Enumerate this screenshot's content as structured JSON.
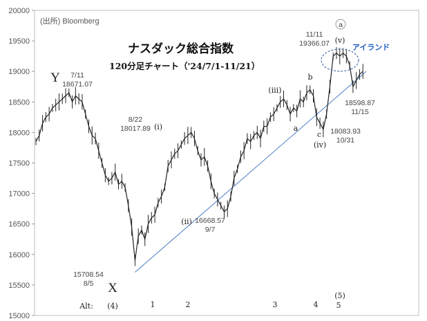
{
  "chart_data": {
    "type": "candlestick",
    "title": "ナスダック総合指数",
    "subtitle": "120分足チャート（'24/7/1-11/21）",
    "source": "(出所) Bloomberg",
    "ylim": [
      15000,
      20000
    ],
    "yticks": [
      15000,
      15500,
      16000,
      16500,
      17000,
      17500,
      18000,
      18500,
      19000,
      19500,
      20000
    ],
    "ytick_labels": [
      "15000",
      "15500",
      "16000",
      "16500",
      "17000",
      "17500",
      "18000",
      "18500",
      "19000",
      "19500",
      "20000"
    ],
    "x_index_range": [
      0,
      100
    ],
    "series": [
      {
        "type": "path",
        "points": [
          [
            0,
            17850
          ],
          [
            1,
            17950
          ],
          [
            2,
            18150
          ],
          [
            3,
            18250
          ],
          [
            4,
            18300
          ],
          [
            5,
            18400
          ],
          [
            6,
            18450
          ],
          [
            7,
            18500
          ],
          [
            8,
            18550
          ],
          [
            9,
            18600
          ],
          [
            10,
            18650
          ],
          [
            11,
            18500
          ],
          [
            12,
            18600
          ],
          [
            13,
            18550
          ],
          [
            14,
            18500
          ],
          [
            15,
            18300
          ],
          [
            16,
            18100
          ],
          [
            17,
            17950
          ],
          [
            18,
            17900
          ],
          [
            19,
            17700
          ],
          [
            20,
            17500
          ],
          [
            21,
            17300
          ],
          [
            22,
            17200
          ],
          [
            23,
            17250
          ],
          [
            24,
            17350
          ],
          [
            25,
            17150
          ],
          [
            26,
            17200
          ],
          [
            27,
            17100
          ],
          [
            28,
            16800
          ],
          [
            29,
            16450
          ],
          [
            30,
            15900
          ],
          [
            31,
            16300
          ],
          [
            32,
            16400
          ],
          [
            33,
            16250
          ],
          [
            34,
            16500
          ],
          [
            35,
            16600
          ],
          [
            36,
            16650
          ],
          [
            37,
            16850
          ],
          [
            38,
            16950
          ],
          [
            39,
            17100
          ],
          [
            40,
            17450
          ],
          [
            41,
            17550
          ],
          [
            42,
            17650
          ],
          [
            43,
            17700
          ],
          [
            44,
            17800
          ],
          [
            45,
            17900
          ],
          [
            46,
            17950
          ],
          [
            47,
            18000
          ],
          [
            48,
            17900
          ],
          [
            49,
            17700
          ],
          [
            50,
            17550
          ],
          [
            51,
            17600
          ],
          [
            52,
            17450
          ],
          [
            53,
            17200
          ],
          [
            54,
            17000
          ],
          [
            55,
            16900
          ],
          [
            56,
            16800
          ],
          [
            57,
            16700
          ],
          [
            58,
            16750
          ],
          [
            59,
            16950
          ],
          [
            60,
            17250
          ],
          [
            61,
            17400
          ],
          [
            62,
            17600
          ],
          [
            63,
            17700
          ],
          [
            64,
            17900
          ],
          [
            65,
            17850
          ],
          [
            66,
            17950
          ],
          [
            67,
            18000
          ],
          [
            68,
            17900
          ],
          [
            69,
            18100
          ],
          [
            70,
            18100
          ],
          [
            71,
            18250
          ],
          [
            72,
            18300
          ],
          [
            73,
            18400
          ],
          [
            74,
            18500
          ],
          [
            75,
            18550
          ],
          [
            76,
            18450
          ],
          [
            77,
            18300
          ],
          [
            78,
            18400
          ],
          [
            79,
            18350
          ],
          [
            80,
            18550
          ],
          [
            81,
            18500
          ],
          [
            82,
            18650
          ],
          [
            83,
            18700
          ],
          [
            84,
            18600
          ],
          [
            85,
            18250
          ],
          [
            86,
            18150
          ],
          [
            87,
            18050
          ],
          [
            88,
            18300
          ],
          [
            89,
            18750
          ],
          [
            90,
            19250
          ],
          [
            91,
            19300
          ],
          [
            92,
            19250
          ],
          [
            93,
            19300
          ],
          [
            94,
            19250
          ],
          [
            95,
            19100
          ],
          [
            96,
            18750
          ],
          [
            97,
            18850
          ],
          [
            98,
            18950
          ],
          [
            99,
            19000
          ]
        ]
      }
    ],
    "trendline": {
      "from": [
        30,
        15708.54
      ],
      "to": [
        100,
        19000
      ]
    },
    "annotations": [
      {
        "id": "Y",
        "text": "Y"
      },
      {
        "id": "jul11",
        "lines": [
          "7/11",
          "18671.07"
        ]
      },
      {
        "id": "X",
        "text": "X"
      },
      {
        "id": "aug5",
        "lines": [
          "15708.54",
          "8/5"
        ]
      },
      {
        "id": "i",
        "text": "(i)"
      },
      {
        "id": "aug22",
        "lines": [
          "8/22",
          "18017.89"
        ]
      },
      {
        "id": "ii",
        "text": "(ii)"
      },
      {
        "id": "sep7",
        "lines": [
          "16668.57",
          "9/7"
        ]
      },
      {
        "id": "iii",
        "text": "(iii)"
      },
      {
        "id": "a",
        "text": "a"
      },
      {
        "id": "b",
        "text": "b"
      },
      {
        "id": "c",
        "text": "c"
      },
      {
        "id": "iv",
        "text": "(iv)"
      },
      {
        "id": "oct31",
        "lines": [
          "18083.93",
          "10/31"
        ]
      },
      {
        "id": "v",
        "text": "(v)"
      },
      {
        "id": "nov11",
        "lines": [
          "11/11",
          "19366.07"
        ]
      },
      {
        "id": "circle_a",
        "text": "a"
      },
      {
        "id": "island",
        "text": "アイランド"
      },
      {
        "id": "nov15",
        "lines": [
          "18598.87",
          "11/15"
        ]
      }
    ],
    "alt_labels": [
      "Alt:",
      "(4)",
      "1",
      "2",
      "3",
      "4",
      "5",
      "(5)"
    ]
  }
}
